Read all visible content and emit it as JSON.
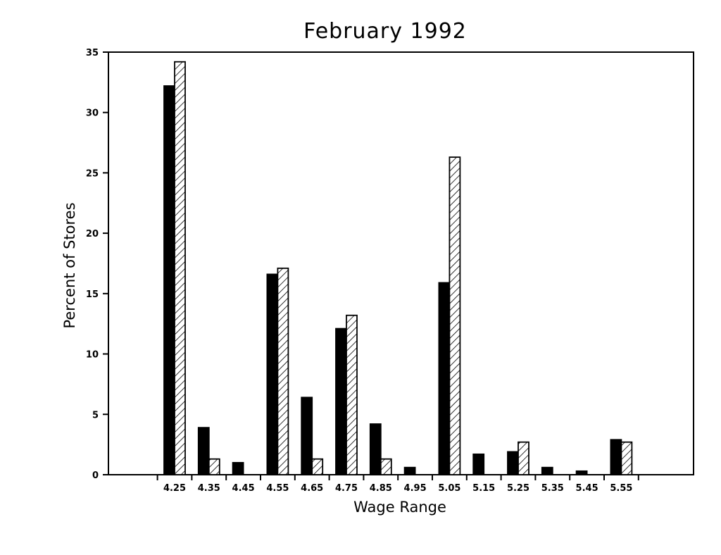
{
  "chart_data": {
    "type": "bar",
    "title": "February 1992",
    "xlabel": "Wage Range",
    "ylabel": "Percent of Stores",
    "categories": [
      "4.25",
      "4.35",
      "4.45",
      "4.55",
      "4.65",
      "4.75",
      "4.85",
      "4.95",
      "5.05",
      "5.15",
      "5.25",
      "5.35",
      "5.45",
      "5.55"
    ],
    "series": [
      {
        "style": "solid",
        "color": "#000000",
        "values": [
          32.2,
          3.9,
          1.0,
          16.6,
          6.4,
          12.1,
          4.2,
          0.6,
          15.9,
          1.7,
          1.9,
          0.6,
          0.3,
          2.9
        ]
      },
      {
        "style": "hatched",
        "color": "#000000",
        "values": [
          34.2,
          1.3,
          0,
          17.1,
          1.3,
          13.2,
          1.3,
          0,
          26.3,
          0,
          2.7,
          0,
          0,
          2.7
        ]
      }
    ],
    "ylim": [
      0,
      35
    ],
    "yticks": [
      "0",
      "5",
      "10",
      "15",
      "20",
      "25",
      "30",
      "35"
    ],
    "grid": false,
    "legend": "none"
  }
}
